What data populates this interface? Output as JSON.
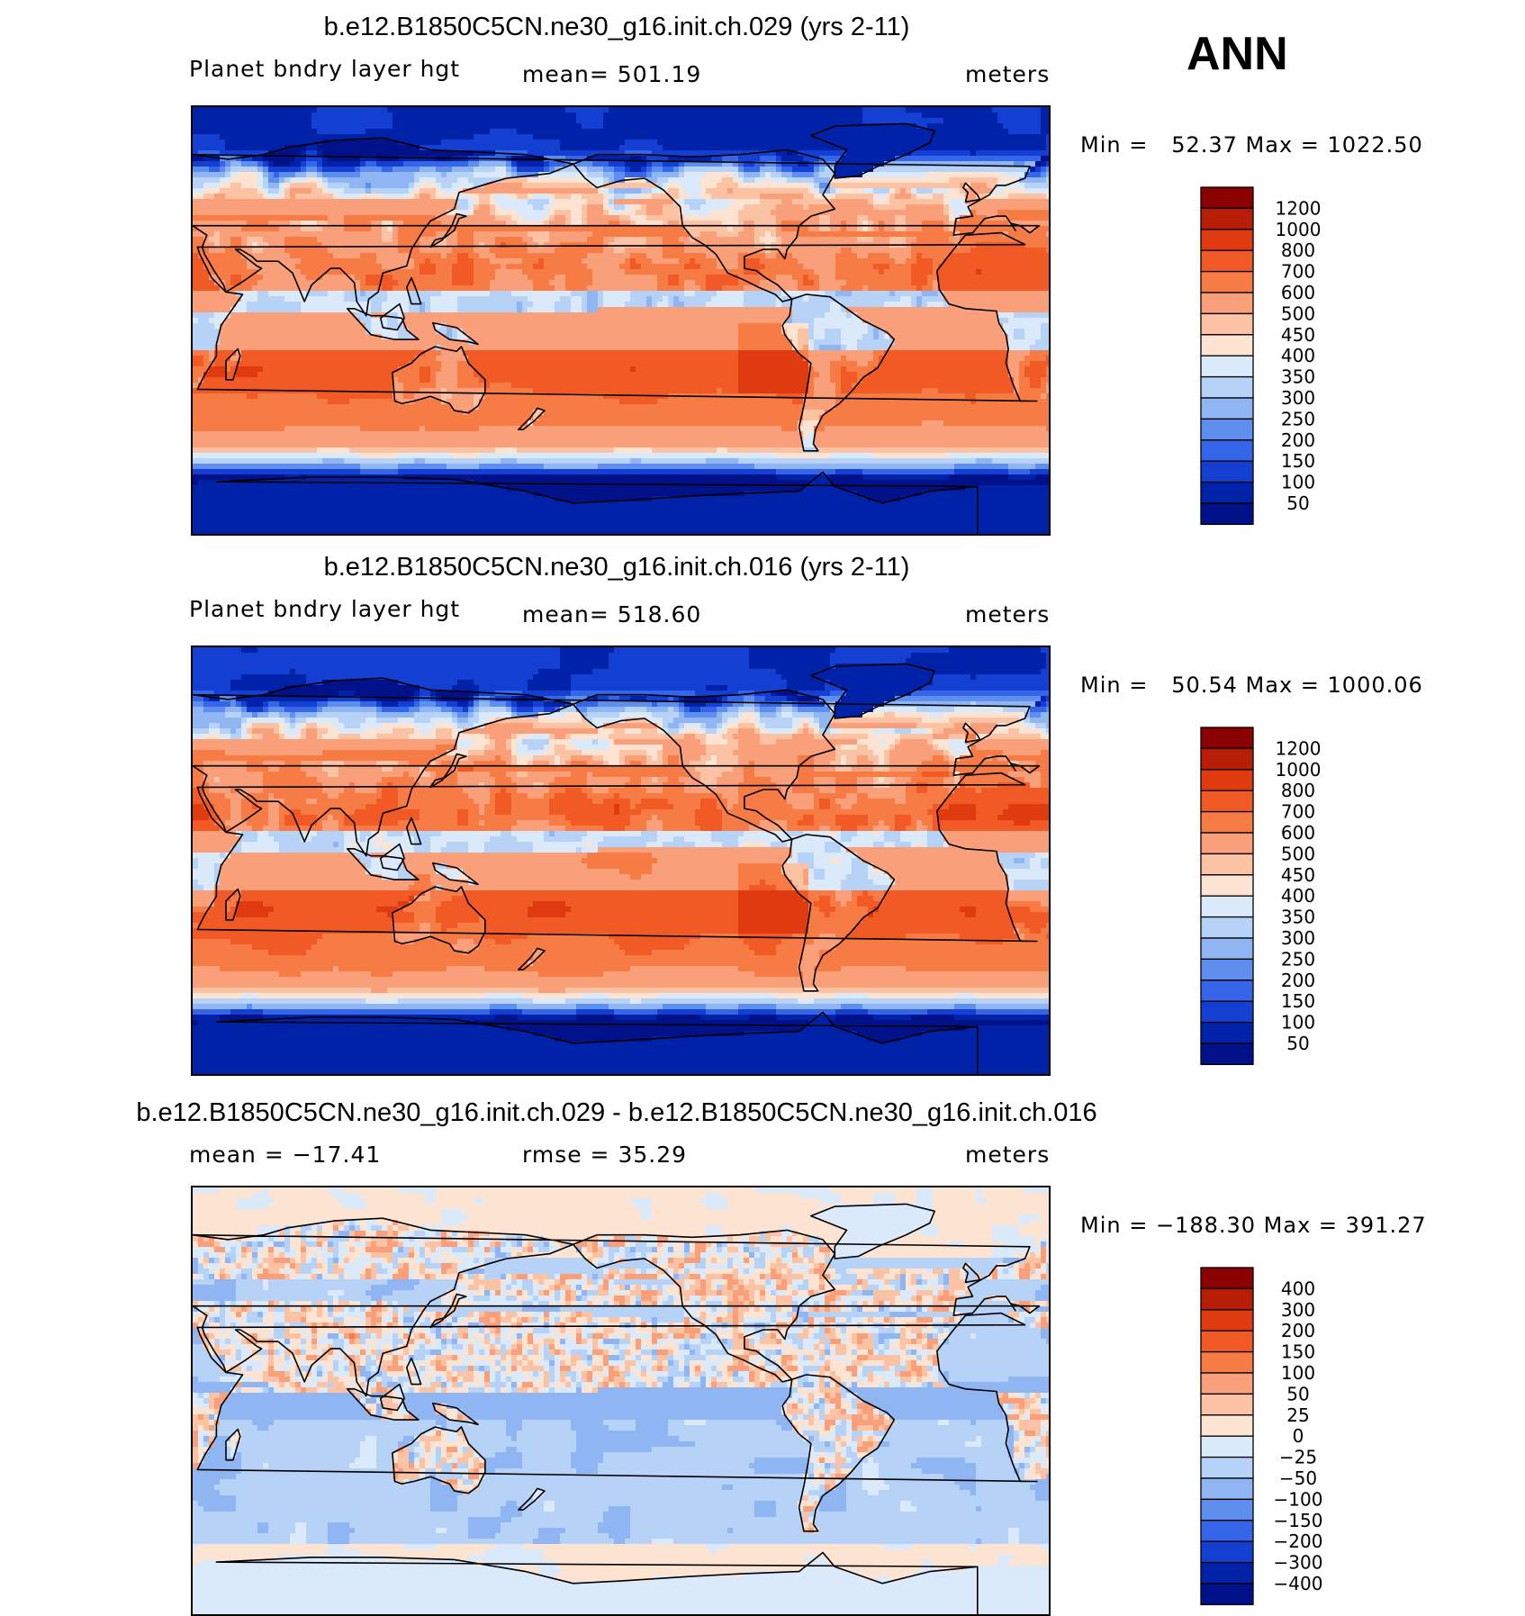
{
  "header": {
    "season": "ANN"
  },
  "panels": [
    {
      "id": "case1",
      "title": "b.e12.B1850C5CN.ne30_g16.init.ch.029 (yrs 2-11)",
      "left": "Planet bndry layer hgt",
      "center": "mean= 501.19",
      "right": "meters",
      "minmax": "Min =   52.37 Max = 1022.50",
      "mean": 501.19,
      "min": 52.37,
      "max": 1022.5,
      "colorbar": {
        "labels": [
          "1200",
          "1000",
          "800",
          "700",
          "600",
          "500",
          "450",
          "400",
          "350",
          "300",
          "250",
          "200",
          "150",
          "100",
          "50"
        ],
        "colors": [
          "#8b0000",
          "#b81d07",
          "#e03a10",
          "#f25a25",
          "#f77b45",
          "#f99f79",
          "#fbc2a4",
          "#fde4d2",
          "#dbeafb",
          "#b6d2f7",
          "#8fb5f2",
          "#5f8fee",
          "#3566ea",
          "#1340d3",
          "#0022a8",
          "#00118a"
        ]
      }
    },
    {
      "id": "case2",
      "title": "b.e12.B1850C5CN.ne30_g16.init.ch.016 (yrs 2-11)",
      "left": "Planet bndry layer hgt",
      "center": "mean= 518.60",
      "right": "meters",
      "minmax": "Min =   50.54 Max = 1000.06",
      "mean": 518.6,
      "min": 50.54,
      "max": 1000.06,
      "colorbar": {
        "labels": [
          "1200",
          "1000",
          "800",
          "700",
          "600",
          "500",
          "450",
          "400",
          "350",
          "300",
          "250",
          "200",
          "150",
          "100",
          "50"
        ],
        "colors": [
          "#8b0000",
          "#b81d07",
          "#e03a10",
          "#f25a25",
          "#f77b45",
          "#f99f79",
          "#fbc2a4",
          "#fde4d2",
          "#dbeafb",
          "#b6d2f7",
          "#8fb5f2",
          "#5f8fee",
          "#3566ea",
          "#1340d3",
          "#0022a8",
          "#00118a"
        ]
      }
    },
    {
      "id": "diff",
      "title": "b.e12.B1850C5CN.ne30_g16.init.ch.029 - b.e12.B1850C5CN.ne30_g16.init.ch.016",
      "left": "mean = −17.41",
      "center": "rmse =   35.29",
      "right": "meters",
      "minmax": "Min = −188.30 Max = 391.27",
      "mean": -17.41,
      "rmse": 35.29,
      "min": -188.3,
      "max": 391.27,
      "colorbar": {
        "labels": [
          "400",
          "300",
          "200",
          "150",
          "100",
          "50",
          "25",
          "0",
          "−25",
          "−50",
          "−100",
          "−150",
          "−200",
          "−300",
          "−400"
        ],
        "colors": [
          "#8b0000",
          "#b81d07",
          "#e03a10",
          "#f25a25",
          "#f77b45",
          "#f99f79",
          "#fbc2a4",
          "#fde4d2",
          "#dbeafb",
          "#b6d2f7",
          "#8fb5f2",
          "#5f8fee",
          "#3566ea",
          "#1340d3",
          "#0022a8",
          "#00118a"
        ]
      }
    }
  ]
}
